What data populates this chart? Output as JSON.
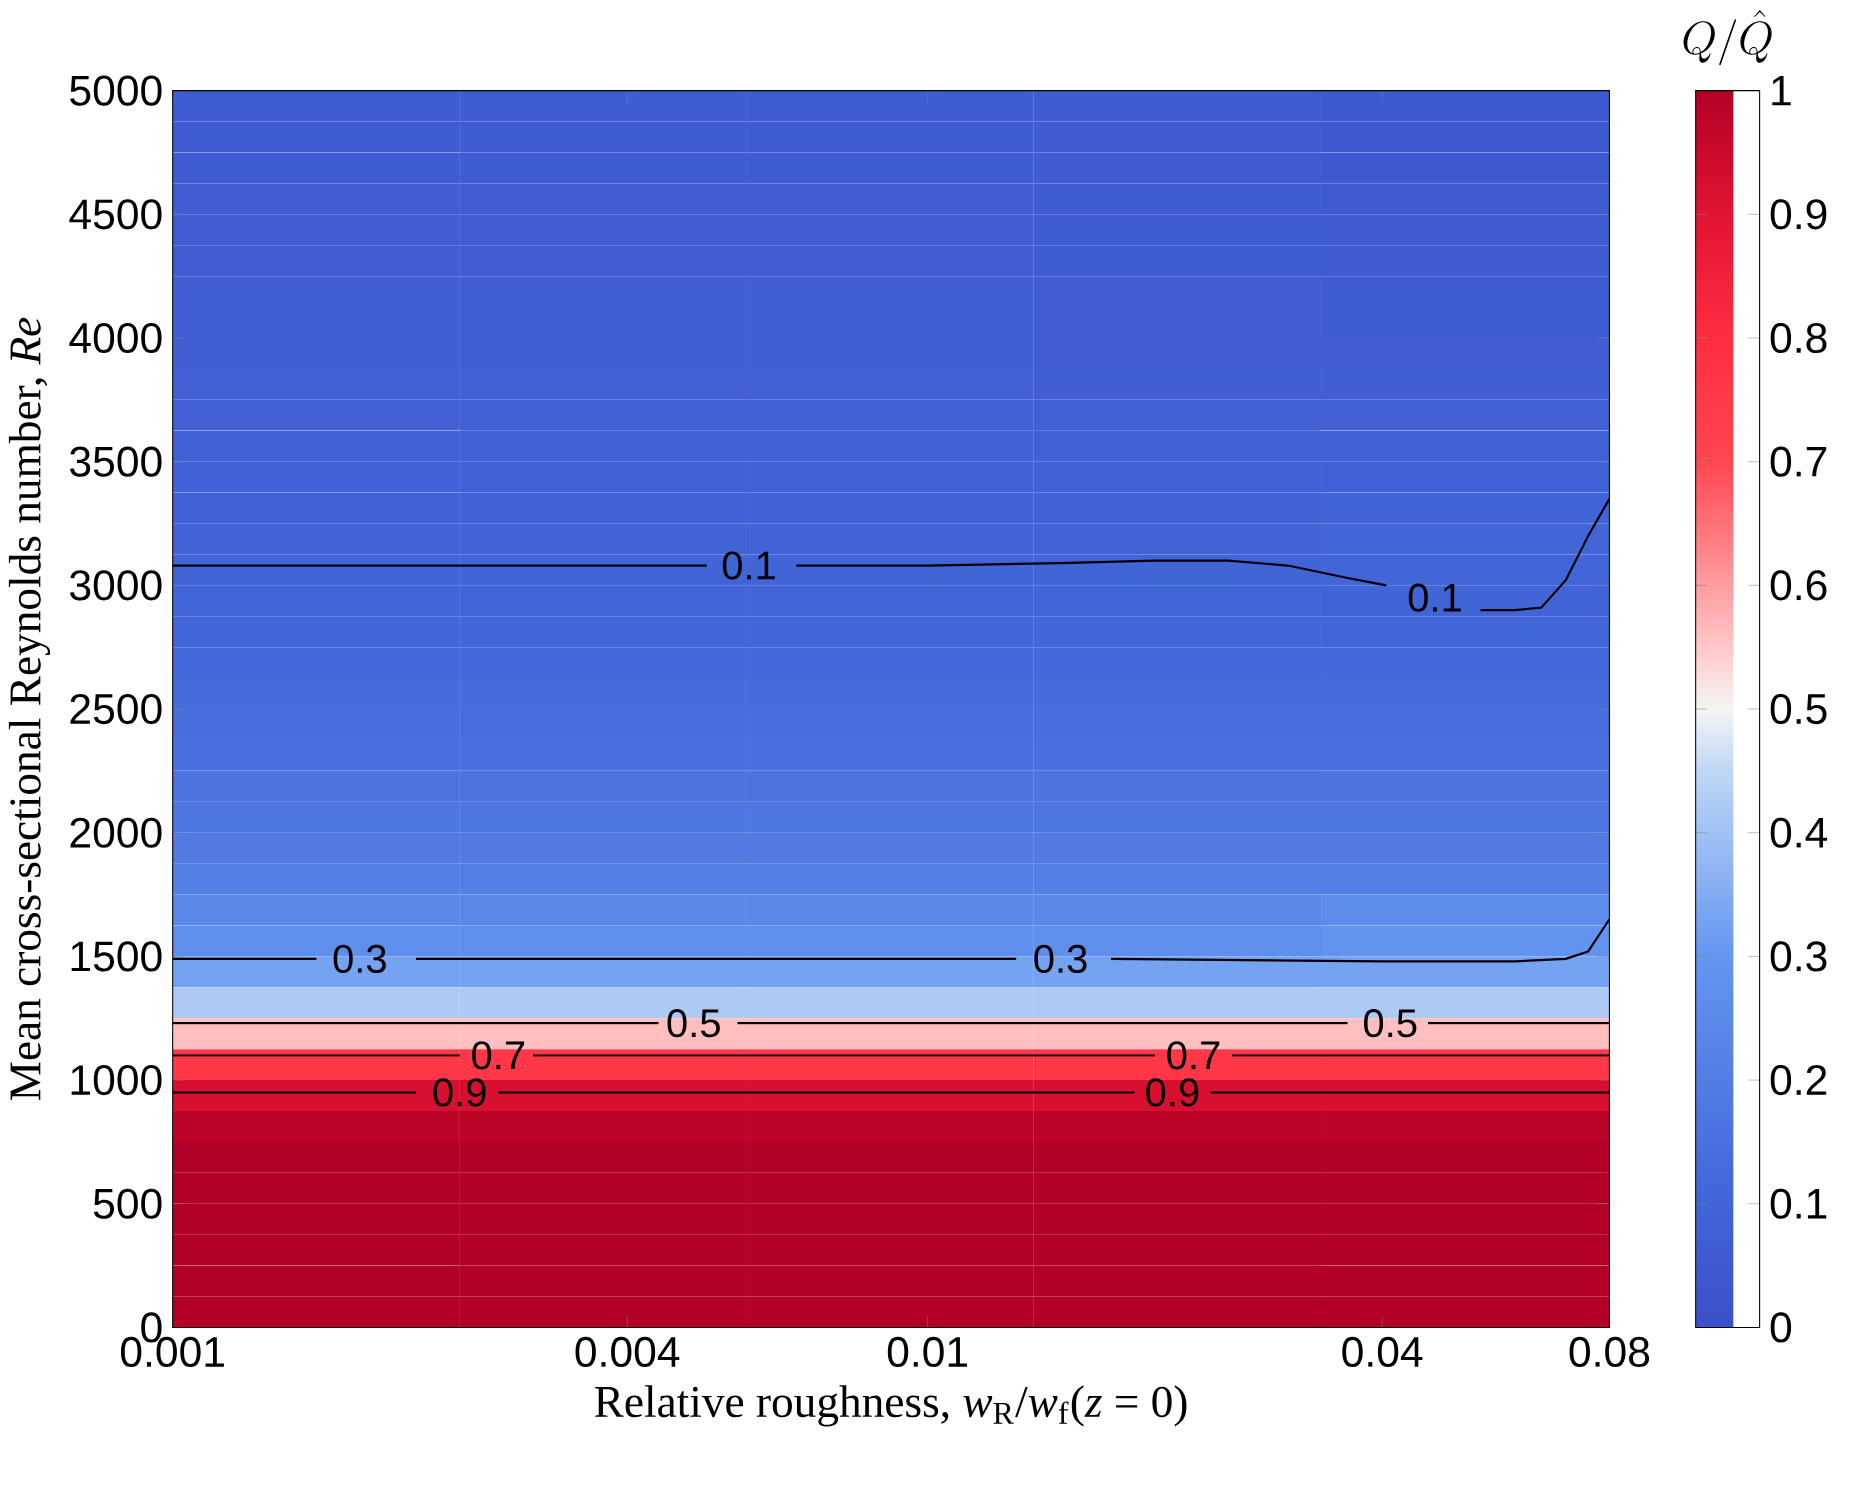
{
  "chart_data": {
    "type": "heatmap",
    "xlabel": "Relative roughness, *w*$_{R}$/*w*$_{f}$(*z* = 0)",
    "ylabel": "Mean cross-sectional Reynolds number, *Re*",
    "clabel": "Q/\\hat{Q}",
    "log": "x",
    "xlim": [
      0.001,
      0.08
    ],
    "xticks": [
      0.001,
      0.004,
      0.01,
      0.04,
      0.08
    ],
    "ylim": [
      0,
      5000
    ],
    "yticks": [
      0,
      500,
      1000,
      1500,
      2000,
      2500,
      3000,
      3500,
      4000,
      4500,
      5000
    ],
    "clim": [
      0,
      1
    ],
    "cticks": [
      0,
      0.1,
      0.2,
      0.3,
      0.4,
      0.5,
      0.6,
      0.7,
      0.8,
      0.9,
      1
    ],
    "x": [
      0.00155,
      0.00372,
      0.00893,
      0.0214,
      0.0515
    ],
    "y": [
      4937.5,
      4812.5,
      4687.5,
      4562.5,
      4437.5,
      4312.5,
      4187.5,
      4062.5,
      3937.5,
      3812.5,
      3687.5,
      3562.5,
      3437.5,
      3312.5,
      3187.5,
      3062.5,
      2937.5,
      2812.5,
      2687.5,
      2562.5,
      2437.5,
      2312.5,
      2187.5,
      2062.5,
      1937.5,
      1812.5,
      1687.5,
      1562.5,
      1437.5,
      1312.5,
      1187.5,
      1062.5,
      937.5,
      812.5,
      687.5,
      562.5,
      437.5,
      312.5,
      187.5,
      62.5
    ],
    "cells": [
      [
        0.065,
        0.065,
        0.065,
        0.06,
        0.05
      ],
      [
        0.065,
        0.065,
        0.065,
        0.06,
        0.05
      ],
      [
        0.065,
        0.065,
        0.065,
        0.06,
        0.05
      ],
      [
        0.07,
        0.07,
        0.07,
        0.065,
        0.055
      ],
      [
        0.07,
        0.07,
        0.07,
        0.065,
        0.06
      ],
      [
        0.07,
        0.07,
        0.07,
        0.065,
        0.06
      ],
      [
        0.075,
        0.075,
        0.075,
        0.07,
        0.065
      ],
      [
        0.075,
        0.075,
        0.075,
        0.07,
        0.065
      ],
      [
        0.075,
        0.075,
        0.075,
        0.07,
        0.07
      ],
      [
        0.08,
        0.08,
        0.08,
        0.075,
        0.075
      ],
      [
        0.08,
        0.08,
        0.08,
        0.08,
        0.08
      ],
      [
        0.085,
        0.085,
        0.085,
        0.085,
        0.085
      ],
      [
        0.09,
        0.09,
        0.09,
        0.09,
        0.09
      ],
      [
        0.09,
        0.09,
        0.09,
        0.09,
        0.1
      ],
      [
        0.095,
        0.095,
        0.095,
        0.095,
        0.105
      ],
      [
        0.1,
        0.1,
        0.1,
        0.1,
        0.105
      ],
      [
        0.105,
        0.105,
        0.105,
        0.105,
        0.1
      ],
      [
        0.11,
        0.11,
        0.11,
        0.11,
        0.105
      ],
      [
        0.12,
        0.12,
        0.12,
        0.12,
        0.12
      ],
      [
        0.13,
        0.13,
        0.13,
        0.13,
        0.13
      ],
      [
        0.14,
        0.14,
        0.14,
        0.14,
        0.14
      ],
      [
        0.15,
        0.15,
        0.15,
        0.15,
        0.15
      ],
      [
        0.16,
        0.16,
        0.16,
        0.16,
        0.16
      ],
      [
        0.17,
        0.17,
        0.17,
        0.17,
        0.17
      ],
      [
        0.19,
        0.19,
        0.19,
        0.19,
        0.19
      ],
      [
        0.21,
        0.21,
        0.21,
        0.21,
        0.21
      ],
      [
        0.24,
        0.24,
        0.24,
        0.24,
        0.26
      ],
      [
        0.27,
        0.27,
        0.27,
        0.27,
        0.29
      ],
      [
        0.33,
        0.33,
        0.33,
        0.33,
        0.33
      ],
      [
        0.42,
        0.42,
        0.42,
        0.42,
        0.42
      ],
      [
        0.56,
        0.56,
        0.56,
        0.56,
        0.56
      ],
      [
        0.76,
        0.76,
        0.76,
        0.76,
        0.76
      ],
      [
        0.92,
        0.92,
        0.92,
        0.92,
        0.92
      ],
      [
        0.98,
        0.98,
        0.98,
        0.98,
        0.98
      ],
      [
        1,
        1,
        1,
        1,
        1
      ],
      [
        1,
        1,
        1,
        1,
        1
      ],
      [
        1,
        1,
        1,
        1,
        1
      ],
      [
        1,
        1,
        1,
        1,
        1
      ],
      [
        1,
        1,
        1,
        1,
        1
      ],
      [
        1,
        1,
        1,
        1,
        1
      ]
    ],
    "series": [
      {
        "type": "line",
        "color": "#000000",
        "x": [
          0.001,
          0.0051,
          0.0058,
          0.0067,
          0.01,
          0.015,
          0.02,
          0.025,
          0.03,
          0.036,
          0.0405,
          0.047,
          0.054,
          0.06,
          0.065,
          0.07,
          0.075,
          0.08
        ],
        "values": [
          3080,
          3080,
          null,
          3080,
          3080,
          3090,
          3100,
          3100,
          3080,
          3030,
          3000,
          null,
          2900,
          2900,
          2910,
          3020,
          3200,
          3350
        ]
      },
      {
        "type": "line",
        "color": "#000000",
        "x": [
          0.001,
          0.00155,
          0.00177,
          0.0021,
          0.0131,
          0.015,
          0.0175,
          0.04,
          0.06,
          0.07,
          0.075,
          0.08
        ],
        "values": [
          1490,
          1490,
          null,
          1490,
          1490,
          null,
          1490,
          1480,
          1480,
          1490,
          1520,
          1650
        ]
      },
      {
        "type": "line",
        "color": "#000000",
        "x": [
          0.001,
          0.0044,
          0.0049,
          0.0056,
          0.036,
          0.041,
          0.046,
          0.08
        ],
        "values": [
          1230,
          1230,
          null,
          1230,
          1230,
          null,
          1230,
          1230
        ]
      },
      {
        "type": "line",
        "color": "#000000",
        "x": [
          0.001,
          0.0024,
          0.0027,
          0.003,
          0.02,
          0.0225,
          0.0253,
          0.08
        ],
        "values": [
          1100,
          1100,
          null,
          1100,
          1100,
          null,
          1100,
          1100
        ]
      },
      {
        "type": "line",
        "color": "#000000",
        "x": [
          0.001,
          0.0021,
          0.0024,
          0.0027,
          0.0188,
          0.0211,
          0.0237,
          0.08
        ],
        "values": [
          950,
          950,
          null,
          950,
          950,
          null,
          950,
          950
        ]
      }
    ],
    "annotations": [
      "0.1",
      "0.1",
      "0.3",
      "0.3",
      "0.5",
      "0.5",
      "0.7",
      "0.7",
      "0.9",
      "0.9"
    ]
  }
}
